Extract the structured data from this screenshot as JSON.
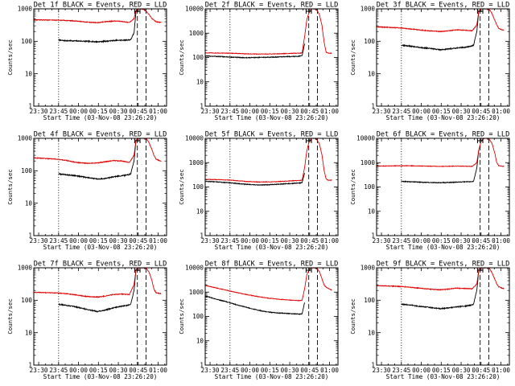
{
  "colors": {
    "events": "#000000",
    "lld": "#e00000",
    "axis": "#000000",
    "background": "#ffffff"
  },
  "common": {
    "ylabel": "Counts/sec",
    "xlabel": "Start Time (03-Nov-08 23:26:20)",
    "x_tick_labels": [
      "23:30",
      "23:45",
      "00:00",
      "00:15",
      "00:30",
      "00:45",
      "01:00"
    ],
    "x_tick_minutes": [
      3.67,
      18.67,
      33.67,
      48.67,
      63.67,
      78.67,
      93.67
    ],
    "x_range_minutes": [
      0,
      100
    ],
    "x_minor_step_minutes": 5,
    "vlines": [
      {
        "style": "dotted",
        "minute": 18.67
      },
      {
        "style": "dashed",
        "minute": 78.0
      },
      {
        "style": "dashed",
        "minute": 84.5
      }
    ],
    "marker_minutes": [
      76.0,
      80.0
    ],
    "jitter_events": 0.015,
    "jitter_lld": 0.011
  },
  "chart_data": [
    {
      "type": "line",
      "title": "Det 1f BLACK = Events, RED = LLD",
      "yscale": "log",
      "ylim": [
        1,
        1000
      ],
      "y_tick_labels": [
        "1",
        "10",
        "100",
        "1000"
      ],
      "series": [
        {
          "name": "Events",
          "x": [
            18.67,
            22,
            30,
            40,
            48,
            54,
            60,
            66,
            71,
            73,
            75.5,
            77,
            78.5
          ],
          "y": [
            110,
            105,
            103,
            100,
            96,
            100,
            105,
            108,
            110,
            112,
            180,
            850,
            1000
          ]
        },
        {
          "name": "LLD",
          "x": [
            0,
            8,
            16,
            24,
            32,
            40,
            48,
            54,
            60,
            66,
            72,
            75.5,
            77,
            79,
            81,
            83,
            85,
            87,
            89,
            90.5,
            92,
            94,
            96
          ],
          "y": [
            460,
            455,
            450,
            440,
            420,
            390,
            375,
            400,
            420,
            410,
            380,
            500,
            900,
            1000,
            1000,
            950,
            800,
            650,
            500,
            450,
            400,
            390,
            380
          ]
        }
      ]
    },
    {
      "type": "line",
      "title": "Det 2f BLACK = Events, RED = LLD",
      "yscale": "log",
      "ylim": [
        1,
        10000
      ],
      "y_tick_labels": [
        "1",
        "10",
        "100",
        "1000",
        "10000"
      ],
      "series": [
        {
          "name": "Events",
          "x": [
            0,
            10,
            20,
            30,
            40,
            50,
            60,
            66,
            71,
            73,
            75
          ],
          "y": [
            115,
            110,
            103,
            98,
            100,
            103,
            108,
            110,
            113,
            120,
            400
          ]
        },
        {
          "name": "LLD",
          "x": [
            0,
            10,
            20,
            30,
            40,
            50,
            60,
            66,
            71,
            73,
            75,
            76.5,
            78,
            80,
            82,
            84,
            86,
            88,
            89.5,
            91,
            92.5,
            94,
            95.5
          ],
          "y": [
            155,
            152,
            150,
            142,
            138,
            140,
            145,
            148,
            150,
            155,
            800,
            3500,
            6500,
            10000,
            10000,
            9000,
            6000,
            2000,
            450,
            170,
            150,
            150,
            150
          ]
        }
      ]
    },
    {
      "type": "line",
      "title": "Det 3f BLACK = Events, RED = LLD",
      "yscale": "log",
      "ylim": [
        1,
        1000
      ],
      "y_tick_labels": [
        "1",
        "10",
        "100",
        "1000"
      ],
      "series": [
        {
          "name": "Events",
          "x": [
            18.67,
            24,
            32,
            40,
            48,
            54,
            60,
            66,
            71,
            73,
            75.5,
            77
          ],
          "y": [
            75,
            72,
            65,
            60,
            55,
            58,
            62,
            65,
            70,
            75,
            200,
            900
          ]
        },
        {
          "name": "LLD",
          "x": [
            0,
            8,
            16,
            24,
            32,
            40,
            48,
            54,
            60,
            66,
            72,
            75.5,
            77,
            79,
            81,
            83,
            85,
            87,
            89,
            90.5,
            92,
            94,
            96
          ],
          "y": [
            280,
            270,
            260,
            245,
            225,
            210,
            200,
            210,
            225,
            220,
            210,
            320,
            900,
            1000,
            1000,
            1000,
            950,
            700,
            450,
            320,
            250,
            230,
            220
          ]
        }
      ]
    },
    {
      "type": "line",
      "title": "Det 4f BLACK = Events, RED = LLD",
      "yscale": "log",
      "ylim": [
        1,
        1000
      ],
      "y_tick_labels": [
        "1",
        "10",
        "100",
        "1000"
      ],
      "series": [
        {
          "name": "Events",
          "x": [
            18.67,
            24,
            32,
            40,
            48,
            54,
            60,
            66,
            71,
            73,
            75.5,
            77
          ],
          "y": [
            80,
            76,
            70,
            62,
            55,
            58,
            65,
            70,
            75,
            80,
            200,
            900
          ]
        },
        {
          "name": "LLD",
          "x": [
            0,
            8,
            16,
            24,
            32,
            40,
            48,
            54,
            60,
            66,
            72,
            75.5,
            77,
            79,
            81,
            83,
            85,
            87,
            89,
            90.5,
            92,
            94,
            96
          ],
          "y": [
            250,
            240,
            230,
            210,
            180,
            170,
            175,
            190,
            205,
            200,
            180,
            300,
            900,
            1000,
            1000,
            1000,
            950,
            700,
            450,
            300,
            230,
            210,
            200
          ]
        }
      ]
    },
    {
      "type": "line",
      "title": "Det 5f BLACK = Events, RED = LLD",
      "yscale": "log",
      "ylim": [
        1,
        10000
      ],
      "y_tick_labels": [
        "1",
        "10",
        "100",
        "1000",
        "10000"
      ],
      "series": [
        {
          "name": "Events",
          "x": [
            0,
            10,
            20,
            30,
            40,
            50,
            60,
            66,
            71,
            73,
            75
          ],
          "y": [
            170,
            160,
            145,
            130,
            120,
            125,
            135,
            140,
            145,
            150,
            400
          ]
        },
        {
          "name": "LLD",
          "x": [
            0,
            10,
            20,
            30,
            40,
            50,
            60,
            66,
            71,
            73,
            75,
            76.5,
            78,
            80,
            82,
            84,
            86,
            88,
            89.5,
            91,
            92.5,
            94,
            95.5
          ],
          "y": [
            205,
            200,
            190,
            170,
            160,
            162,
            172,
            180,
            185,
            190,
            700,
            3000,
            6500,
            10000,
            10000,
            9000,
            6000,
            2000,
            500,
            220,
            190,
            190,
            190
          ]
        }
      ]
    },
    {
      "type": "line",
      "title": "Det 6f BLACK = Events, RED = LLD",
      "yscale": "log",
      "ylim": [
        1,
        10000
      ],
      "y_tick_labels": [
        "1",
        "10",
        "100",
        "1000",
        "10000"
      ],
      "series": [
        {
          "name": "Events",
          "x": [
            18.67,
            24,
            32,
            40,
            48,
            54,
            60,
            66,
            71,
            73,
            75.5,
            77
          ],
          "y": [
            170,
            165,
            158,
            152,
            150,
            153,
            158,
            162,
            165,
            170,
            600,
            3500
          ]
        },
        {
          "name": "LLD",
          "x": [
            0,
            8,
            16,
            24,
            32,
            40,
            48,
            54,
            60,
            66,
            72,
            75.5,
            77,
            79,
            81,
            83,
            85,
            87,
            89,
            90.5,
            92,
            94,
            96
          ],
          "y": [
            720,
            730,
            740,
            745,
            730,
            715,
            700,
            710,
            720,
            715,
            700,
            1000,
            3500,
            8000,
            10000,
            10000,
            9000,
            6000,
            2500,
            1000,
            750,
            720,
            700
          ]
        }
      ]
    },
    {
      "type": "line",
      "title": "Det 7f BLACK = Events, RED = LLD",
      "yscale": "log",
      "ylim": [
        1,
        1000
      ],
      "y_tick_labels": [
        "1",
        "10",
        "100",
        "1000"
      ],
      "series": [
        {
          "name": "Events",
          "x": [
            18.67,
            24,
            32,
            40,
            48,
            54,
            60,
            66,
            71,
            73,
            75.5,
            77
          ],
          "y": [
            75,
            70,
            62,
            52,
            45,
            50,
            58,
            65,
            70,
            75,
            200,
            900
          ]
        },
        {
          "name": "LLD",
          "x": [
            0,
            8,
            16,
            24,
            32,
            40,
            48,
            54,
            60,
            66,
            72,
            75.5,
            77,
            79,
            81,
            83,
            85,
            87,
            89,
            90.5,
            92,
            94,
            96
          ],
          "y": [
            175,
            172,
            168,
            160,
            145,
            130,
            125,
            135,
            150,
            155,
            150,
            300,
            900,
            1000,
            1000,
            1000,
            950,
            700,
            400,
            220,
            170,
            165,
            160
          ]
        }
      ]
    },
    {
      "type": "line",
      "title": "Det 8f BLACK = Events, RED = LLD",
      "yscale": "log",
      "ylim": [
        1,
        10000
      ],
      "y_tick_labels": [
        "1",
        "10",
        "100",
        "1000",
        "10000"
      ],
      "series": [
        {
          "name": "Events",
          "x": [
            0,
            8,
            16,
            24,
            32,
            40,
            48,
            54,
            60,
            66,
            71,
            73,
            75
          ],
          "y": [
            700,
            520,
            400,
            300,
            230,
            180,
            150,
            140,
            135,
            128,
            125,
            128,
            400
          ]
        },
        {
          "name": "LLD",
          "x": [
            0,
            8,
            16,
            24,
            32,
            40,
            48,
            54,
            60,
            66,
            71,
            73,
            75,
            76.5,
            78,
            80,
            82,
            84,
            86,
            88,
            89.5,
            91,
            92.5,
            94,
            95.5
          ],
          "y": [
            1900,
            1500,
            1200,
            950,
            780,
            650,
            560,
            520,
            490,
            460,
            450,
            460,
            1500,
            5000,
            8000,
            10000,
            10000,
            9500,
            7000,
            3500,
            2000,
            1600,
            1450,
            1300,
            1200
          ]
        }
      ]
    },
    {
      "type": "line",
      "title": "Det 9f BLACK = Events, RED = LLD",
      "yscale": "log",
      "ylim": [
        1,
        1000
      ],
      "y_tick_labels": [
        "1",
        "10",
        "100",
        "1000"
      ],
      "series": [
        {
          "name": "Events",
          "x": [
            18.67,
            24,
            32,
            40,
            48,
            54,
            60,
            66,
            71,
            73,
            75.5,
            77
          ],
          "y": [
            75,
            72,
            65,
            60,
            55,
            58,
            62,
            65,
            70,
            75,
            200,
            900
          ]
        },
        {
          "name": "LLD",
          "x": [
            0,
            8,
            16,
            24,
            32,
            40,
            48,
            54,
            60,
            66,
            72,
            75.5,
            77,
            79,
            81,
            83,
            85,
            87,
            89,
            90.5,
            92,
            94,
            96
          ],
          "y": [
            280,
            275,
            268,
            255,
            235,
            220,
            210,
            220,
            235,
            230,
            225,
            320,
            900,
            1000,
            1000,
            1000,
            950,
            700,
            450,
            320,
            260,
            240,
            230
          ]
        }
      ]
    }
  ]
}
